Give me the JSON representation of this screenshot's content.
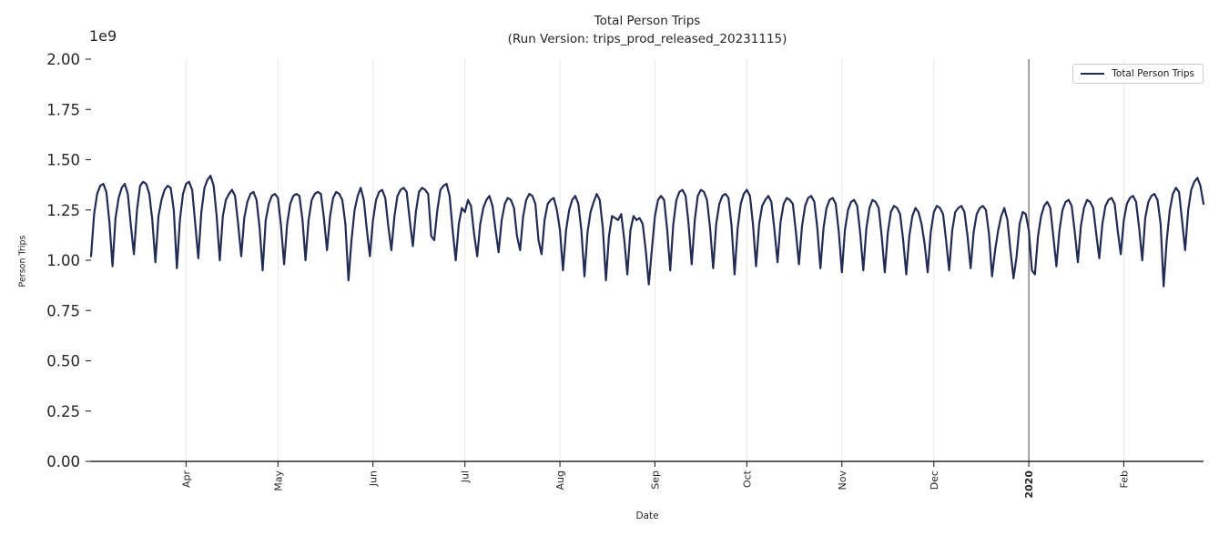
{
  "figure": {
    "title": "Total Person Trips",
    "subtitle": "(Run Version: trips_prod_released_20231115)"
  },
  "chart_data": {
    "type": "line",
    "title": "Total Person Trips",
    "subtitle": "(Run Version: trips_prod_released_20231115)",
    "xlabel": "Date",
    "ylabel": "Person Trips",
    "y_offset_text": "1e9",
    "ylim": [
      0.0,
      2.0
    ],
    "values_unit": "1e9",
    "grid": {
      "vertical": true,
      "horizontal": false,
      "color": "#e7e7e7"
    },
    "legend": {
      "position": "upper right",
      "entries": [
        "Total Person Trips"
      ]
    },
    "y_ticks": [
      {
        "label": "0.00",
        "value": 0.0
      },
      {
        "label": "0.25",
        "value": 0.25
      },
      {
        "label": "0.50",
        "value": 0.5
      },
      {
        "label": "0.75",
        "value": 0.75
      },
      {
        "label": "1.00",
        "value": 1.0
      },
      {
        "label": "1.25",
        "value": 1.25
      },
      {
        "label": "1.50",
        "value": 1.5
      },
      {
        "label": "1.75",
        "value": 1.75
      },
      {
        "label": "2.00",
        "value": 2.0
      }
    ],
    "x_ticks": [
      {
        "label": "Apr",
        "day": 31,
        "bold": false
      },
      {
        "label": "May",
        "day": 61,
        "bold": false
      },
      {
        "label": "Jun",
        "day": 92,
        "bold": false
      },
      {
        "label": "Jul",
        "day": 122,
        "bold": false
      },
      {
        "label": "Aug",
        "day": 153,
        "bold": false
      },
      {
        "label": "Sep",
        "day": 184,
        "bold": false
      },
      {
        "label": "Oct",
        "day": 214,
        "bold": false
      },
      {
        "label": "Nov",
        "day": 245,
        "bold": false
      },
      {
        "label": "Dec",
        "day": 275,
        "bold": false
      },
      {
        "label": "2020",
        "day": 306,
        "bold": true
      },
      {
        "label": "Feb",
        "day": 337,
        "bold": false
      }
    ],
    "vline": {
      "day": 306,
      "color": "#4a4a4a"
    },
    "series": [
      {
        "name": "Total Person Trips",
        "color": "#222b54",
        "values": [
          1.02,
          1.23,
          1.33,
          1.37,
          1.38,
          1.34,
          1.19,
          0.97,
          1.21,
          1.31,
          1.36,
          1.38,
          1.33,
          1.17,
          1.03,
          1.25,
          1.37,
          1.39,
          1.38,
          1.33,
          1.2,
          0.99,
          1.22,
          1.3,
          1.35,
          1.37,
          1.36,
          1.25,
          0.96,
          1.2,
          1.33,
          1.38,
          1.39,
          1.35,
          1.18,
          1.01,
          1.24,
          1.36,
          1.4,
          1.42,
          1.37,
          1.22,
          1.0,
          1.22,
          1.3,
          1.33,
          1.35,
          1.32,
          1.18,
          1.02,
          1.21,
          1.29,
          1.33,
          1.34,
          1.3,
          1.16,
          0.95,
          1.2,
          1.28,
          1.32,
          1.33,
          1.31,
          1.17,
          0.98,
          1.18,
          1.28,
          1.32,
          1.33,
          1.32,
          1.2,
          1.0,
          1.2,
          1.3,
          1.33,
          1.34,
          1.33,
          1.21,
          1.05,
          1.22,
          1.31,
          1.34,
          1.33,
          1.3,
          1.18,
          0.9,
          1.1,
          1.25,
          1.32,
          1.36,
          1.3,
          1.15,
          1.02,
          1.2,
          1.3,
          1.34,
          1.35,
          1.31,
          1.17,
          1.05,
          1.22,
          1.32,
          1.35,
          1.36,
          1.34,
          1.2,
          1.07,
          1.24,
          1.34,
          1.36,
          1.35,
          1.33,
          1.12,
          1.1,
          1.25,
          1.35,
          1.37,
          1.38,
          1.32,
          1.15,
          1.0,
          1.18,
          1.26,
          1.24,
          1.3,
          1.27,
          1.13,
          1.02,
          1.18,
          1.26,
          1.3,
          1.32,
          1.27,
          1.15,
          1.04,
          1.2,
          1.28,
          1.31,
          1.3,
          1.26,
          1.12,
          1.05,
          1.22,
          1.3,
          1.33,
          1.32,
          1.28,
          1.1,
          1.03,
          1.2,
          1.28,
          1.3,
          1.31,
          1.25,
          1.15,
          0.95,
          1.15,
          1.25,
          1.3,
          1.32,
          1.28,
          1.15,
          0.92,
          1.14,
          1.24,
          1.29,
          1.33,
          1.3,
          1.16,
          0.9,
          1.12,
          1.22,
          1.21,
          1.2,
          1.23,
          1.1,
          0.93,
          1.15,
          1.22,
          1.2,
          1.21,
          1.18,
          1.05,
          0.88,
          1.05,
          1.22,
          1.3,
          1.32,
          1.3,
          1.15,
          0.95,
          1.18,
          1.3,
          1.34,
          1.35,
          1.32,
          1.18,
          0.98,
          1.2,
          1.32,
          1.35,
          1.34,
          1.3,
          1.16,
          0.96,
          1.18,
          1.28,
          1.32,
          1.33,
          1.31,
          1.17,
          0.93,
          1.16,
          1.28,
          1.33,
          1.35,
          1.32,
          1.18,
          0.97,
          1.18,
          1.27,
          1.3,
          1.32,
          1.29,
          1.15,
          0.99,
          1.19,
          1.28,
          1.31,
          1.3,
          1.28,
          1.14,
          0.98,
          1.17,
          1.27,
          1.31,
          1.32,
          1.29,
          1.16,
          0.96,
          1.16,
          1.26,
          1.3,
          1.31,
          1.28,
          1.14,
          0.94,
          1.15,
          1.25,
          1.29,
          1.3,
          1.27,
          1.13,
          0.95,
          1.16,
          1.26,
          1.3,
          1.29,
          1.26,
          1.12,
          0.94,
          1.14,
          1.24,
          1.27,
          1.26,
          1.23,
          1.1,
          0.93,
          1.12,
          1.22,
          1.26,
          1.24,
          1.18,
          1.08,
          0.94,
          1.14,
          1.24,
          1.27,
          1.26,
          1.23,
          1.1,
          0.95,
          1.15,
          1.24,
          1.26,
          1.27,
          1.24,
          1.12,
          0.96,
          1.14,
          1.23,
          1.26,
          1.27,
          1.25,
          1.13,
          0.92,
          1.05,
          1.15,
          1.22,
          1.26,
          1.2,
          1.05,
          0.91,
          1.02,
          1.18,
          1.24,
          1.23,
          1.15,
          0.95,
          0.93,
          1.12,
          1.22,
          1.27,
          1.29,
          1.26,
          1.12,
          0.97,
          1.15,
          1.25,
          1.29,
          1.3,
          1.27,
          1.14,
          0.99,
          1.17,
          1.26,
          1.3,
          1.29,
          1.26,
          1.13,
          1.01,
          1.18,
          1.27,
          1.3,
          1.31,
          1.28,
          1.15,
          1.03,
          1.2,
          1.28,
          1.31,
          1.32,
          1.29,
          1.16,
          1.0,
          1.21,
          1.29,
          1.32,
          1.33,
          1.3,
          1.18,
          0.87,
          1.1,
          1.25,
          1.33,
          1.36,
          1.34,
          1.2,
          1.05,
          1.25,
          1.35,
          1.39,
          1.41,
          1.37,
          1.28
        ]
      }
    ]
  }
}
